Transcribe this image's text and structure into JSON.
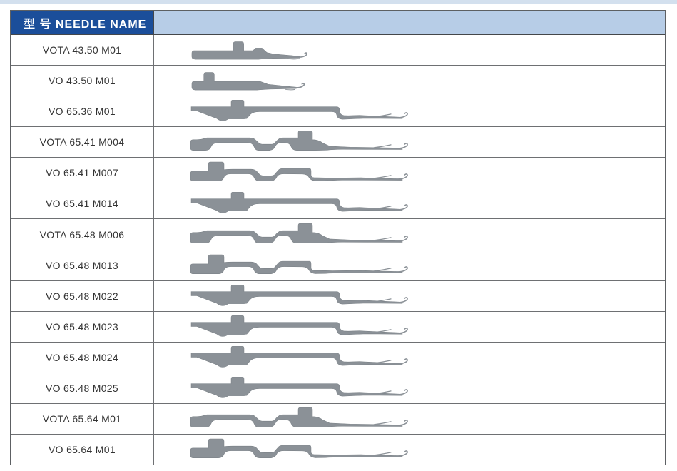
{
  "table": {
    "header": {
      "label": "型 号 NEEDLE  NAME",
      "header_bg": "#1b4e9a",
      "header_right_bg": "#b7cde7",
      "header_text_color": "#ffffff"
    },
    "needle_color": "#8b9197",
    "border_color": "#6e7073",
    "rows": [
      {
        "name": "VOTA 43.50 M01",
        "shape": "A"
      },
      {
        "name": "VO 43.50 M01",
        "shape": "B"
      },
      {
        "name": "VO 65.36 M01",
        "shape": "C"
      },
      {
        "name": "VOTA 65.41 M004",
        "shape": "D"
      },
      {
        "name": "VO 65.41 M007",
        "shape": "E"
      },
      {
        "name": "VO 65.41 M014",
        "shape": "C"
      },
      {
        "name": "VOTA 65.48 M006",
        "shape": "D"
      },
      {
        "name": "VO 65.48 M013",
        "shape": "E"
      },
      {
        "name": "VO 65.48 M022",
        "shape": "C"
      },
      {
        "name": "VO 65.48 M023",
        "shape": "C"
      },
      {
        "name": "VO 65.48 M024",
        "shape": "C"
      },
      {
        "name": "VO 65.48 M025",
        "shape": "C"
      },
      {
        "name": "VOTA 65.64 M01",
        "shape": "D"
      },
      {
        "name": "VO 65.64 M01",
        "shape": "E"
      }
    ]
  }
}
